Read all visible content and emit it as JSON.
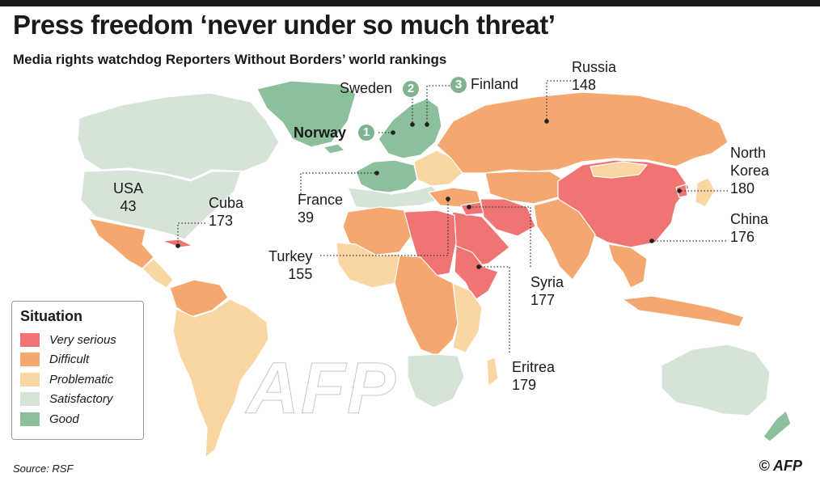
{
  "header": {
    "title": "Press freedom ‘never under so much threat’",
    "subtitle": "Media rights watchdog Reporters Without Borders’ world rankings"
  },
  "colors": {
    "very_serious": "#f07472",
    "difficult": "#f4a86f",
    "problematic": "#fad6a3",
    "satisfactory": "#d6e3d7",
    "good": "#8cbf9c",
    "badge": "#7fb391",
    "border": "#ffffff"
  },
  "legend": {
    "title": "Situation",
    "items": [
      {
        "label": "Very serious",
        "color": "#f07472"
      },
      {
        "label": "Difficult",
        "color": "#f4a86f"
      },
      {
        "label": "Problematic",
        "color": "#fad6a3"
      },
      {
        "label": "Satisfactory",
        "color": "#d6e3d7"
      },
      {
        "label": "Good",
        "color": "#8cbf9c"
      }
    ]
  },
  "countries": {
    "norway": {
      "name": "Norway",
      "rank": "1"
    },
    "sweden": {
      "name": "Sweden",
      "rank": "2"
    },
    "finland": {
      "name": "Finland",
      "rank": "3"
    },
    "russia": {
      "name": "Russia",
      "rank": "148"
    },
    "usa": {
      "name": "USA",
      "rank": "43"
    },
    "cuba": {
      "name": "Cuba",
      "rank": "173"
    },
    "france": {
      "name": "France",
      "rank": "39"
    },
    "turkey": {
      "name": "Turkey",
      "rank": "155"
    },
    "north_korea": {
      "name_line1": "North",
      "name_line2": "Korea",
      "rank": "180"
    },
    "china": {
      "name": "China",
      "rank": "176"
    },
    "syria": {
      "name": "Syria",
      "rank": "177"
    },
    "eritrea": {
      "name": "Eritrea",
      "rank": "179"
    }
  },
  "footer": {
    "source": "Source: RSF",
    "credit": "© AFP",
    "watermark": "AFP"
  }
}
